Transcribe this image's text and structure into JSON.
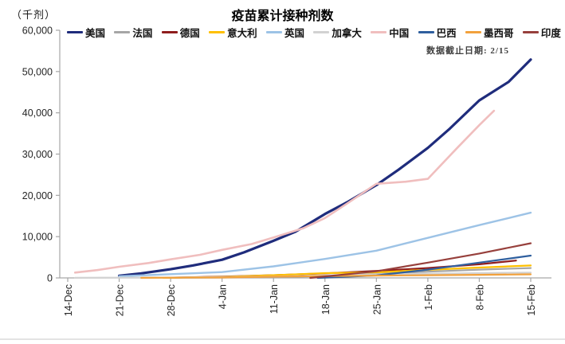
{
  "header": {
    "unit_label": "（千剂）",
    "title": "疫苗累计接种剂数",
    "note": "数据截止日期: 2/15"
  },
  "chart_data": {
    "type": "line",
    "title": "疫苗累计接种剂数",
    "unit_label": "（千剂）",
    "note": "数据截止日期: 2/15",
    "grid": false,
    "legend_position": "top",
    "axis_color": "#a6a6a6",
    "ylim": [
      0,
      60000
    ],
    "ytick_interval": 10000,
    "ytick_labels": [
      "0",
      "10,000",
      "20,000",
      "30,000",
      "40,000",
      "50,000",
      "60,000"
    ],
    "xtick_labels": [
      "14-Dec",
      "21-Dec",
      "28-Dec",
      "4-Jan",
      "11-Jan",
      "18-Jan",
      "25-Jan",
      "1-Feb",
      "8-Feb",
      "15-Feb"
    ],
    "xtick_days": [
      0,
      7,
      14,
      21,
      28,
      35,
      42,
      49,
      56,
      63
    ],
    "series": [
      {
        "name": "美国",
        "color": "#1f2c7c",
        "width": 3.2,
        "days": [
          7,
          10,
          14,
          17,
          21,
          24,
          28,
          31,
          35,
          38,
          42,
          45,
          49,
          52,
          56,
          60,
          63
        ],
        "values": [
          500,
          1100,
          2100,
          3000,
          4400,
          6200,
          9000,
          11200,
          15500,
          18300,
          22500,
          26200,
          31500,
          36200,
          43000,
          47500,
          52900
        ]
      },
      {
        "name": "法国",
        "color": "#a6a6a6",
        "width": 2.2,
        "days": [
          14,
          21,
          28,
          35,
          42,
          49,
          56,
          63
        ],
        "values": [
          30,
          100,
          160,
          450,
          1000,
          1500,
          2000,
          2400
        ]
      },
      {
        "name": "德国",
        "color": "#8f1d1d",
        "width": 2.2,
        "days": [
          13,
          21,
          28,
          35,
          42,
          49,
          56,
          61
        ],
        "values": [
          20,
          300,
          650,
          1100,
          1700,
          2400,
          3300,
          4200
        ]
      },
      {
        "name": "意大利",
        "color": "#ffc000",
        "width": 2.2,
        "days": [
          13,
          21,
          28,
          35,
          42,
          49,
          56,
          63
        ],
        "values": [
          10,
          250,
          650,
          1150,
          1350,
          1950,
          2500,
          3000
        ]
      },
      {
        "name": "英国",
        "color": "#9dc3e6",
        "width": 2.4,
        "days": [
          7,
          14,
          21,
          28,
          35,
          42,
          49,
          56,
          63
        ],
        "values": [
          400,
          900,
          1400,
          2800,
          4600,
          6600,
          9700,
          12800,
          15800
        ]
      },
      {
        "name": "加拿大",
        "color": "#d2d2d2",
        "width": 2.2,
        "days": [
          1,
          7,
          14,
          21,
          28,
          35,
          42,
          49,
          56,
          63
        ],
        "values": [
          10,
          50,
          100,
          200,
          350,
          600,
          850,
          1000,
          1150,
          1300
        ]
      },
      {
        "name": "中国",
        "color": "#f0bebe",
        "width": 2.6,
        "days": [
          1,
          4,
          7,
          11,
          14,
          18,
          21,
          25,
          28,
          32,
          35,
          38,
          42,
          46,
          49,
          53,
          56,
          58
        ],
        "values": [
          1300,
          1900,
          2700,
          3600,
          4500,
          5600,
          6800,
          8200,
          9800,
          12000,
          14500,
          18000,
          22800,
          23300,
          24000,
          31500,
          37000,
          40500
        ]
      },
      {
        "name": "巴西",
        "color": "#2f5f9e",
        "width": 2.2,
        "days": [
          34,
          42,
          49,
          56,
          63
        ],
        "values": [
          0,
          600,
          2000,
          3700,
          5400
        ]
      },
      {
        "name": "墨西哥",
        "color": "#f2a13c",
        "width": 2.2,
        "days": [
          10,
          14,
          21,
          28,
          35,
          42,
          49,
          56,
          63
        ],
        "values": [
          10,
          50,
          100,
          300,
          450,
          550,
          650,
          750,
          870
        ]
      },
      {
        "name": "印度",
        "color": "#97403c",
        "width": 2.2,
        "days": [
          33,
          42,
          49,
          56,
          63
        ],
        "values": [
          0,
          1600,
          3700,
          5900,
          8400
        ]
      }
    ]
  }
}
